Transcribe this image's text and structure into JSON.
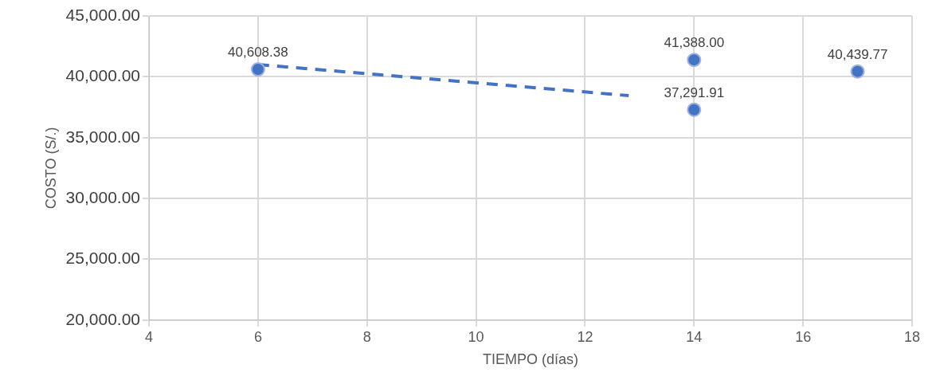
{
  "chart_data": {
    "type": "scatter",
    "xlabel": "TIEMPO (días)",
    "ylabel": "COSTO (S/.)",
    "xlim": [
      4,
      18
    ],
    "xticks": [
      4,
      6,
      8,
      10,
      12,
      14,
      16,
      18
    ],
    "ylim": [
      20000,
      45000
    ],
    "yticks": [
      {
        "value": 20000,
        "label": "20,000.00"
      },
      {
        "value": 25000,
        "label": "25,000.00"
      },
      {
        "value": 30000,
        "label": "30,000.00"
      },
      {
        "value": 35000,
        "label": "35,000.00"
      },
      {
        "value": 40000,
        "label": "40,000.00"
      },
      {
        "value": 45000,
        "label": "45,000.00"
      }
    ],
    "grid": true,
    "legend": false,
    "series": [
      {
        "color": "#4472c4",
        "marker": "circle",
        "x": [
          6,
          14,
          14,
          17
        ],
        "values": [
          40608.38,
          41388.0,
          37291.91,
          40439.77
        ],
        "value_labels": [
          "40,608.38",
          "41,388.00",
          "37,291.91",
          "40,439.77"
        ]
      },
      {
        "type": "line",
        "color": "#4472c4",
        "marker": "none",
        "line_style": "dashed",
        "x": [
          6,
          12.8
        ],
        "values": [
          41000,
          38450
        ]
      }
    ]
  }
}
